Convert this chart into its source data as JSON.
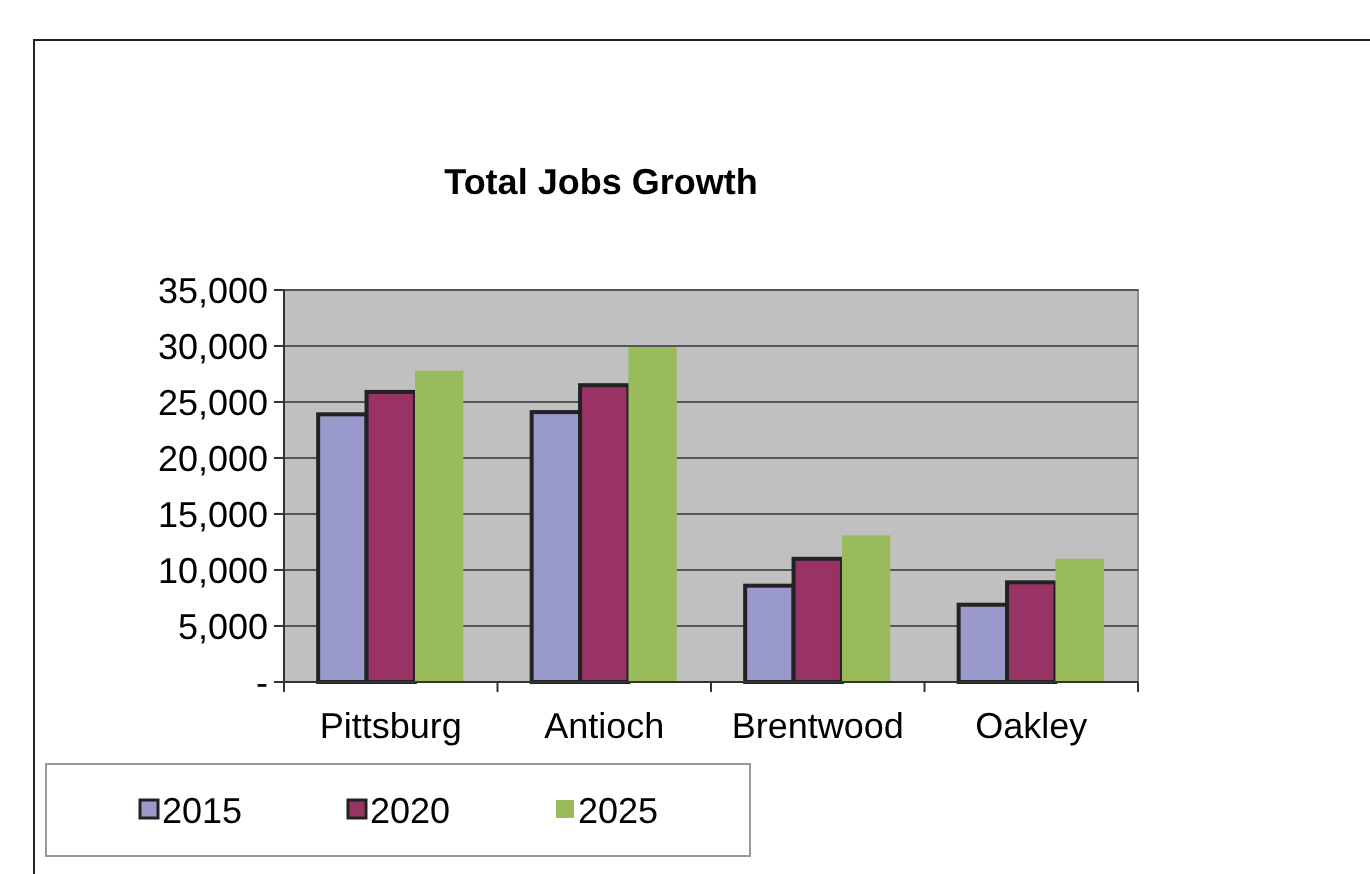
{
  "chart_data": {
    "type": "bar",
    "title": "Total Jobs Growth",
    "categories": [
      "Pittsburg",
      "Antioch",
      "Brentwood",
      "Oakley"
    ],
    "series": [
      {
        "name": "2015",
        "color": "#9999cc",
        "values": [
          23900,
          24100,
          8600,
          6900
        ]
      },
      {
        "name": "2020",
        "color": "#993366",
        "values": [
          25900,
          26500,
          11000,
          8900
        ]
      },
      {
        "name": "2025",
        "color": "#99bb5c",
        "values": [
          27800,
          29900,
          13100,
          11000
        ]
      }
    ],
    "ylim": [
      0,
      35000
    ],
    "yticks": [
      {
        "value": 0,
        "label": "-"
      },
      {
        "value": 5000,
        "label": "5,000"
      },
      {
        "value": 10000,
        "label": "10,000"
      },
      {
        "value": 15000,
        "label": "15,000"
      },
      {
        "value": 20000,
        "label": "20,000"
      },
      {
        "value": 25000,
        "label": "25,000"
      },
      {
        "value": 30000,
        "label": "30,000"
      },
      {
        "value": 35000,
        "label": "35,000"
      }
    ],
    "grid": "y",
    "legend": "bottom left"
  }
}
